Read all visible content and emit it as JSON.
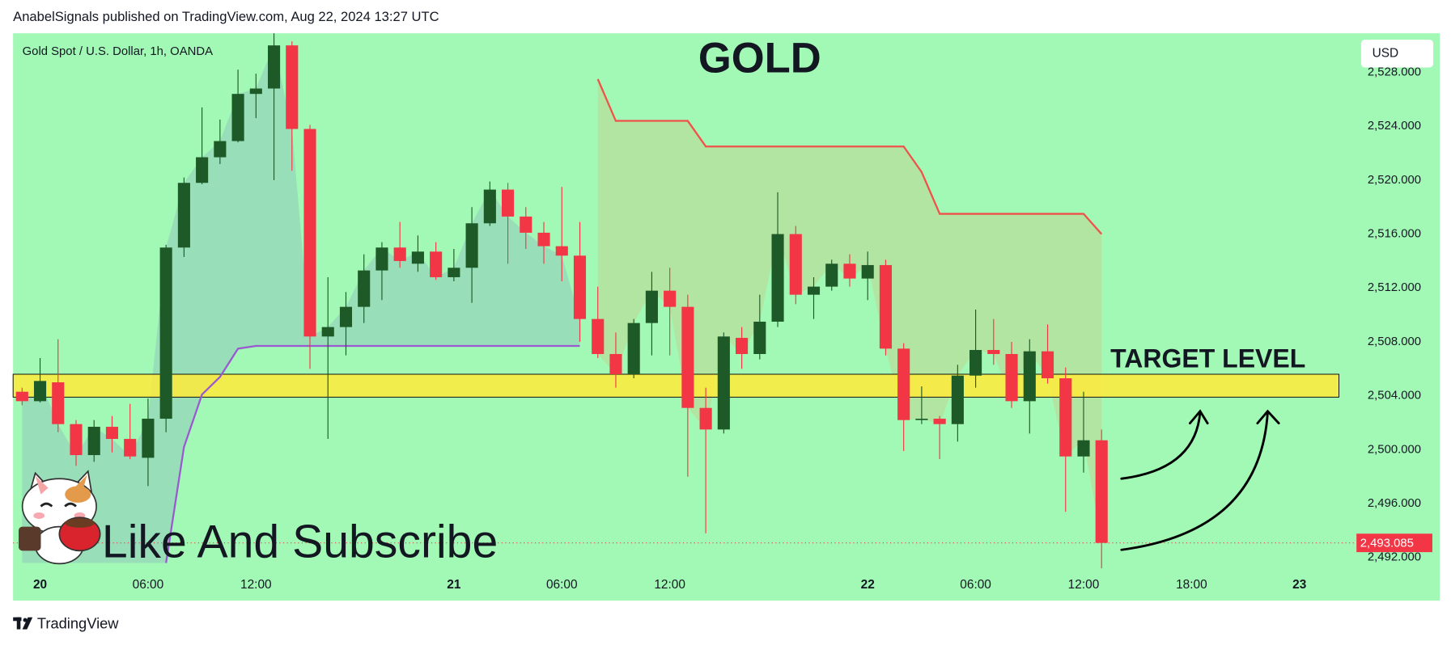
{
  "header": "AnabelSignals published on TradingView.com, Aug 22, 2024 13:27 UTC",
  "footer": "TradingView",
  "chart_data": {
    "type": "candlestick",
    "title": "GOLD",
    "symbol": "Gold Spot / U.S. Dollar, 1h, OANDA",
    "currency": "USD",
    "annotations": {
      "target": "TARGET LEVEL",
      "promo": "Like And Subscribe"
    },
    "categories": [
      null,
      "20",
      null,
      null,
      null,
      null,
      null,
      "06:00",
      null,
      null,
      null,
      null,
      null,
      "12:00",
      null,
      null,
      null,
      null,
      null,
      null,
      null,
      null,
      null,
      null,
      "21",
      null,
      null,
      null,
      null,
      null,
      "06:00",
      null,
      null,
      null,
      null,
      null,
      "12:00",
      null,
      null,
      null,
      null,
      null,
      null,
      null,
      null,
      null,
      null,
      "22",
      null,
      null,
      null,
      null,
      null,
      "06:00",
      null,
      null,
      null,
      null,
      null,
      "12:00",
      null,
      null,
      null,
      null,
      null,
      "18:00",
      null,
      null,
      null,
      null,
      null,
      "23",
      null,
      null
    ],
    "open": [
      2504.3,
      2503.6,
      2505.0,
      2501.9,
      2499.6,
      2501.7,
      2500.8,
      2499.4,
      2502.3,
      2515.0,
      2519.8,
      2521.7,
      2522.9,
      2526.4,
      2526.8,
      2530.0,
      2523.8,
      2508.4,
      2509.1,
      2510.6,
      2513.3,
      2515.0,
      2513.8,
      2514.7,
      2512.8,
      2513.5,
      2516.8,
      2519.3,
      2517.3,
      2516.1,
      2515.1,
      2514.4,
      2509.7,
      2507.1,
      2505.6,
      2509.4,
      2511.8,
      2510.6,
      2503.1,
      2501.5,
      2508.3,
      2507.1,
      2509.5,
      2516.0,
      2511.5,
      2512.1,
      2513.8,
      2512.7,
      2513.7,
      2507.5,
      2502.2,
      2502.3,
      2501.9,
      2505.5,
      2507.4,
      2507.1,
      2503.6,
      2507.3,
      2505.3,
      2499.5,
      2500.7,
      null,
      null,
      null,
      null,
      null,
      null,
      null,
      null,
      null,
      null,
      null,
      null,
      null
    ],
    "high": [
      2504.6,
      2506.8,
      2508.2,
      2502.2,
      2502.2,
      2502.5,
      2503.4,
      2503.8,
      2515.2,
      2520.2,
      2525.4,
      2524.5,
      2528.2,
      2527.9,
      2530.9,
      2530.3,
      2524.1,
      2512.8,
      2511.7,
      2514.5,
      2515.4,
      2516.9,
      2515.9,
      2515.4,
      2514.9,
      2518.0,
      2519.9,
      2519.8,
      2518.0,
      2516.9,
      2519.5,
      2516.9,
      2512.1,
      2508.7,
      2509.7,
      2513.2,
      2513.5,
      2511.5,
      2504.6,
      2508.7,
      2509.1,
      2511.5,
      2519.1,
      2516.6,
      2512.8,
      2514.1,
      2514.5,
      2514.7,
      2514.1,
      2507.9,
      2504.7,
      2502.5,
      2506.3,
      2510.4,
      2509.7,
      2508.0,
      2508.2,
      2509.3,
      2506.1,
      2504.3,
      2501.5,
      null,
      null,
      null,
      null,
      null,
      null,
      null,
      null,
      null,
      null,
      null,
      null,
      null
    ],
    "low": [
      2503.3,
      2503.5,
      2501.3,
      2498.8,
      2499.1,
      2499.8,
      2499.3,
      2497.3,
      2501.3,
      2514.3,
      2519.7,
      2521.2,
      2522.8,
      2524.6,
      2520.0,
      2520.7,
      2506.0,
      2500.8,
      2507.0,
      2509.4,
      2511.1,
      2513.5,
      2513.2,
      2512.6,
      2512.5,
      2510.9,
      2516.6,
      2513.8,
      2514.9,
      2513.8,
      2512.5,
      2508.0,
      2506.8,
      2504.6,
      2505.3,
      2507.0,
      2507.0,
      2498.0,
      2493.8,
      2501.2,
      2506.0,
      2506.7,
      2509.1,
      2510.8,
      2509.7,
      2511.8,
      2512.1,
      2511.1,
      2507.0,
      2499.9,
      2501.9,
      2499.3,
      2500.6,
      2504.6,
      2506.3,
      2503.1,
      2501.2,
      2504.9,
      2495.4,
      2498.3,
      2491.2,
      null,
      null,
      null,
      null,
      null,
      null,
      null,
      null,
      null,
      null,
      null,
      null,
      null
    ],
    "close": [
      2503.6,
      2505.1,
      2501.9,
      2499.6,
      2501.7,
      2500.8,
      2499.5,
      2502.3,
      2515.0,
      2519.8,
      2521.7,
      2522.9,
      2526.4,
      2526.8,
      2530.0,
      2523.8,
      2508.4,
      2509.1,
      2510.6,
      2513.3,
      2515.0,
      2514.0,
      2514.7,
      2512.8,
      2513.5,
      2516.8,
      2519.3,
      2517.3,
      2516.1,
      2515.1,
      2514.4,
      2509.7,
      2507.1,
      2505.6,
      2509.4,
      2511.8,
      2510.6,
      2503.1,
      2501.5,
      2508.4,
      2507.1,
      2509.5,
      2516.0,
      2511.5,
      2512.1,
      2513.8,
      2512.7,
      2513.7,
      2507.5,
      2502.2,
      2502.3,
      2501.9,
      2505.5,
      2507.4,
      2507.1,
      2503.6,
      2507.3,
      2505.3,
      2499.5,
      2500.7,
      2493.085,
      null,
      null,
      null,
      null,
      null,
      null,
      null,
      null,
      null,
      null,
      null,
      null,
      null
    ],
    "up_color": "#1e5a27",
    "down_color": "#f23645",
    "lines": [
      {
        "color": "#9b59d0",
        "fill": "rgba(140,190,190,0.45)",
        "values": [
          null,
          null,
          null,
          null,
          null,
          null,
          null,
          null,
          2491.6,
          2500.2,
          2504.1,
          2505.4,
          2507.5,
          2507.7,
          2507.7,
          2507.7,
          2507.7,
          2507.7,
          2507.7,
          2507.7,
          2507.7,
          2507.7,
          2507.7,
          2507.7,
          2507.7,
          2507.7,
          2507.7,
          2507.7,
          2507.7,
          2507.7,
          2507.7,
          2507.7,
          null,
          null,
          null,
          null,
          null,
          null,
          null,
          null,
          null,
          null,
          null,
          null,
          null,
          null,
          null,
          null,
          null,
          null,
          null,
          null,
          null,
          null,
          null,
          null,
          null,
          null,
          null,
          null,
          null,
          null,
          null,
          null,
          null,
          null,
          null,
          null,
          null,
          null,
          null,
          null,
          null,
          null
        ]
      },
      {
        "color": "#f0524a",
        "fill": "rgba(190,215,150,0.6)",
        "values": [
          null,
          null,
          null,
          null,
          null,
          null,
          null,
          null,
          null,
          null,
          null,
          null,
          null,
          null,
          null,
          null,
          null,
          null,
          null,
          null,
          null,
          null,
          null,
          null,
          null,
          null,
          null,
          null,
          null,
          null,
          null,
          null,
          2527.5,
          2524.4,
          2524.4,
          2524.4,
          2524.4,
          2524.4,
          2522.5,
          2522.5,
          2522.5,
          2522.5,
          2522.5,
          2522.5,
          2522.5,
          2522.5,
          2522.5,
          2522.5,
          2522.5,
          2522.5,
          2520.6,
          2517.5,
          2517.5,
          2517.5,
          2517.5,
          2517.5,
          2517.5,
          2517.5,
          2517.5,
          2517.5,
          2516.0,
          null,
          null,
          null,
          null,
          null,
          null,
          null,
          null,
          null,
          null,
          null,
          null,
          null
        ]
      }
    ],
    "target_zone": [
      2503.9,
      2505.6
    ],
    "target_color": "#ffeb3b",
    "last_price": {
      "value": 2493.085,
      "label": "2,493.085"
    },
    "ylim": [
      2488.8,
      2530.9
    ],
    "yticks": [
      {
        "value": 2492,
        "label": "2,492.000"
      },
      {
        "value": 2496,
        "label": "2,496.000"
      },
      {
        "value": 2500,
        "label": "2,500.000"
      },
      {
        "value": 2504,
        "label": "2,504.000"
      },
      {
        "value": 2508,
        "label": "2,508.000"
      },
      {
        "value": 2512,
        "label": "2,512.000"
      },
      {
        "value": 2516,
        "label": "2,516.000"
      },
      {
        "value": 2520,
        "label": "2,520.000"
      },
      {
        "value": 2524,
        "label": "2,524.000"
      },
      {
        "value": 2528,
        "label": "2,528.000"
      }
    ],
    "grid": false,
    "background": "#a2f9b5"
  }
}
